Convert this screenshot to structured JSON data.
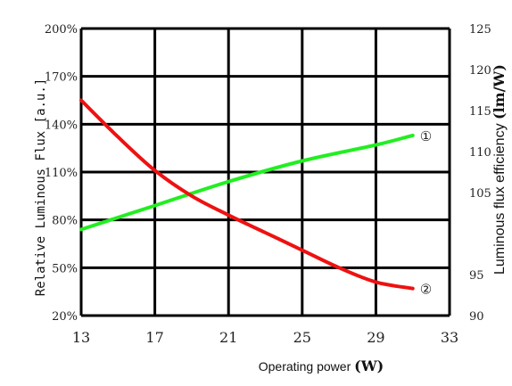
{
  "chart_data": {
    "type": "line",
    "x_axis": {
      "label_text": "Operating power ",
      "label_unit": "(W)",
      "range": [
        13,
        33
      ],
      "ticks": [
        "13",
        "17",
        "21",
        "25",
        "29",
        "33"
      ]
    },
    "y_left": {
      "label_text": "Relative Luminous Flux [a.u.]",
      "range": [
        20,
        200
      ],
      "ticks": [
        "20%",
        "50%",
        "80%",
        "110%",
        "140%",
        "170%",
        "200%"
      ]
    },
    "y_right": {
      "label_text": "Luminous flux efficiency ",
      "label_unit": "(lm/W)",
      "range": [
        90,
        125
      ],
      "ticks": [
        "90",
        "95",
        "105",
        "110",
        "115",
        "120",
        "125"
      ]
    },
    "grid": true,
    "series": [
      {
        "marker": "①",
        "axis": "left",
        "color": "#22ee22",
        "x": [
          13,
          17,
          21,
          25,
          29,
          31
        ],
        "y": [
          74,
          89,
          104,
          117,
          127,
          133
        ]
      },
      {
        "marker": "②",
        "axis": "left",
        "color": "#ee1111",
        "x": [
          13,
          15,
          17,
          19,
          21,
          23,
          25,
          27,
          29,
          31
        ],
        "y": [
          155,
          132,
          111,
          95,
          83,
          72,
          61,
          50,
          41,
          37
        ]
      }
    ]
  }
}
